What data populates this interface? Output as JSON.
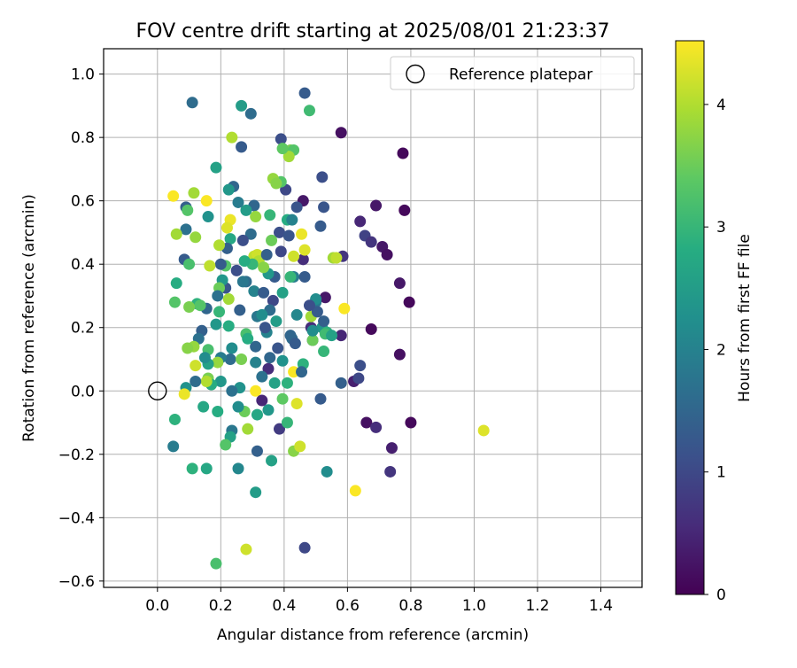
{
  "chart_data": {
    "type": "scatter",
    "title": "FOV centre drift starting at 2025/08/01 21:23:37",
    "xlabel": "Angular distance from reference (arcmin)",
    "ylabel": "Rotation from reference (arcmin)",
    "xlim": [
      -0.17,
      1.53
    ],
    "ylim": [
      -0.62,
      1.08
    ],
    "x_ticks": [
      0.0,
      0.2,
      0.4,
      0.6,
      0.8,
      1.0,
      1.2,
      1.4
    ],
    "x_tick_labels": [
      "0.0",
      "0.2",
      "0.4",
      "0.6",
      "0.8",
      "1.0",
      "1.2",
      "1.4"
    ],
    "y_ticks": [
      -0.6,
      -0.4,
      -0.2,
      0.0,
      0.2,
      0.4,
      0.6,
      0.8,
      1.0
    ],
    "y_tick_labels": [
      "−0.6",
      "−0.4",
      "−0.2",
      "0.0",
      "0.2",
      "0.4",
      "0.6",
      "0.8",
      "1.0"
    ],
    "grid": true,
    "colormap": "viridis",
    "colorbar": {
      "label": "Hours from first FF file",
      "range": [
        0,
        4.52
      ],
      "ticks": [
        0,
        1,
        2,
        3,
        4
      ],
      "tick_labels": [
        "0",
        "1",
        "2",
        "3",
        "4"
      ]
    },
    "legend": {
      "position": "top-right",
      "entries": [
        {
          "label": "Reference platepar",
          "marker": "open-circle"
        }
      ]
    },
    "reference_point": {
      "x": 0.0,
      "y": 0.0
    },
    "points": [
      {
        "x": 0.58,
        "y": 0.815,
        "h": 0.2
      },
      {
        "x": 0.775,
        "y": 0.75,
        "h": 0.1
      },
      {
        "x": 0.78,
        "y": 0.57,
        "h": 0.1
      },
      {
        "x": 0.69,
        "y": 0.585,
        "h": 0.3
      },
      {
        "x": 0.64,
        "y": 0.535,
        "h": 0.5
      },
      {
        "x": 0.655,
        "y": 0.49,
        "h": 0.9
      },
      {
        "x": 0.675,
        "y": 0.47,
        "h": 0.7
      },
      {
        "x": 0.71,
        "y": 0.455,
        "h": 0.3
      },
      {
        "x": 0.725,
        "y": 0.43,
        "h": 0.2
      },
      {
        "x": 0.765,
        "y": 0.34,
        "h": 0.3
      },
      {
        "x": 0.795,
        "y": 0.28,
        "h": 0.1
      },
      {
        "x": 0.675,
        "y": 0.195,
        "h": 0.1
      },
      {
        "x": 0.765,
        "y": 0.115,
        "h": 0.2
      },
      {
        "x": 0.8,
        "y": -0.1,
        "h": 0.1
      },
      {
        "x": 0.66,
        "y": -0.1,
        "h": 0.2
      },
      {
        "x": 0.69,
        "y": -0.115,
        "h": 0.6
      },
      {
        "x": 0.74,
        "y": -0.18,
        "h": 0.4
      },
      {
        "x": 0.735,
        "y": -0.255,
        "h": 0.7
      },
      {
        "x": 0.64,
        "y": 0.08,
        "h": 1.1
      },
      {
        "x": 0.62,
        "y": 0.03,
        "h": 0.4
      },
      {
        "x": 0.635,
        "y": 0.04,
        "h": 1.0
      },
      {
        "x": 0.58,
        "y": 0.025,
        "h": 1.4
      },
      {
        "x": 0.585,
        "y": 0.425,
        "h": 0.7
      },
      {
        "x": 0.58,
        "y": 0.175,
        "h": 0.5
      },
      {
        "x": 0.52,
        "y": 0.675,
        "h": 1.1
      },
      {
        "x": 0.525,
        "y": 0.58,
        "h": 1.2
      },
      {
        "x": 0.515,
        "y": 0.52,
        "h": 1.3
      },
      {
        "x": 0.53,
        "y": 0.295,
        "h": 0.3
      },
      {
        "x": 0.5,
        "y": 0.28,
        "h": 1.8
      },
      {
        "x": 0.485,
        "y": 0.2,
        "h": 0.6
      },
      {
        "x": 0.49,
        "y": 0.16,
        "h": 0.7
      },
      {
        "x": 0.515,
        "y": -0.025,
        "h": 1.3
      },
      {
        "x": 0.535,
        "y": -0.255,
        "h": 2.2
      },
      {
        "x": 0.465,
        "y": 0.94,
        "h": 1.3
      },
      {
        "x": 0.48,
        "y": 0.885,
        "h": 3.1
      },
      {
        "x": 0.465,
        "y": -0.495,
        "h": 1.0
      },
      {
        "x": 0.46,
        "y": 0.6,
        "h": 0.3
      },
      {
        "x": 0.455,
        "y": 0.495,
        "h": 4.4
      },
      {
        "x": 0.46,
        "y": 0.415,
        "h": 0.6
      },
      {
        "x": 0.465,
        "y": 0.445,
        "h": 4.3
      },
      {
        "x": 0.44,
        "y": 0.24,
        "h": 2.1
      },
      {
        "x": 0.42,
        "y": 0.76,
        "h": 3.6
      },
      {
        "x": 0.43,
        "y": 0.76,
        "h": 3.3
      },
      {
        "x": 0.415,
        "y": 0.74,
        "h": 3.9
      },
      {
        "x": 0.405,
        "y": 0.635,
        "h": 1.0
      },
      {
        "x": 0.41,
        "y": 0.54,
        "h": 2.8
      },
      {
        "x": 0.43,
        "y": 0.425,
        "h": 4.2
      },
      {
        "x": 0.425,
        "y": 0.165,
        "h": 1.6
      },
      {
        "x": 0.43,
        "y": 0.06,
        "h": 4.5
      },
      {
        "x": 0.44,
        "y": -0.04,
        "h": 4.3
      },
      {
        "x": 0.43,
        "y": -0.19,
        "h": 3.7
      },
      {
        "x": 0.45,
        "y": -0.175,
        "h": 4.2
      },
      {
        "x": 0.39,
        "y": 0.795,
        "h": 1.1
      },
      {
        "x": 0.395,
        "y": 0.765,
        "h": 3.4
      },
      {
        "x": 0.39,
        "y": 0.66,
        "h": 3.3
      },
      {
        "x": 0.385,
        "y": 0.5,
        "h": 1.1
      },
      {
        "x": 0.39,
        "y": 0.44,
        "h": 1.0
      },
      {
        "x": 0.395,
        "y": 0.31,
        "h": 2.6
      },
      {
        "x": 0.38,
        "y": 0.135,
        "h": 1.2
      },
      {
        "x": 0.395,
        "y": 0.095,
        "h": 2.3
      },
      {
        "x": 0.395,
        "y": -0.025,
        "h": 3.4
      },
      {
        "x": 0.385,
        "y": -0.12,
        "h": 0.8
      },
      {
        "x": 0.41,
        "y": -0.1,
        "h": 3.0
      },
      {
        "x": 0.365,
        "y": 0.67,
        "h": 3.8
      },
      {
        "x": 0.375,
        "y": 0.655,
        "h": 3.7
      },
      {
        "x": 0.355,
        "y": 0.555,
        "h": 3.0
      },
      {
        "x": 0.36,
        "y": 0.475,
        "h": 3.5
      },
      {
        "x": 0.37,
        "y": 0.36,
        "h": 1.3
      },
      {
        "x": 0.365,
        "y": 0.285,
        "h": 1.0
      },
      {
        "x": 0.35,
        "y": 0.37,
        "h": 2.4
      },
      {
        "x": 0.355,
        "y": 0.255,
        "h": 1.6
      },
      {
        "x": 0.345,
        "y": 0.185,
        "h": 2.0
      },
      {
        "x": 0.35,
        "y": 0.07,
        "h": 0.6
      },
      {
        "x": 0.35,
        "y": -0.06,
        "h": 2.4
      },
      {
        "x": 0.36,
        "y": -0.22,
        "h": 2.6
      },
      {
        "x": 0.295,
        "y": 0.875,
        "h": 1.6
      },
      {
        "x": 0.305,
        "y": 0.585,
        "h": 1.5
      },
      {
        "x": 0.31,
        "y": 0.55,
        "h": 3.8
      },
      {
        "x": 0.295,
        "y": 0.495,
        "h": 1.6
      },
      {
        "x": 0.305,
        "y": 0.425,
        "h": 4.1
      },
      {
        "x": 0.315,
        "y": 0.43,
        "h": 4.2
      },
      {
        "x": 0.32,
        "y": 0.41,
        "h": 4.0
      },
      {
        "x": 0.3,
        "y": 0.4,
        "h": 3.0
      },
      {
        "x": 0.305,
        "y": 0.315,
        "h": 2.0
      },
      {
        "x": 0.315,
        "y": 0.235,
        "h": 1.8
      },
      {
        "x": 0.31,
        "y": 0.14,
        "h": 1.5
      },
      {
        "x": 0.31,
        "y": 0.09,
        "h": 2.0
      },
      {
        "x": 0.315,
        "y": -0.075,
        "h": 2.7
      },
      {
        "x": 0.315,
        "y": -0.19,
        "h": 1.4
      },
      {
        "x": 0.31,
        "y": -0.32,
        "h": 2.5
      },
      {
        "x": 0.28,
        "y": 0.57,
        "h": 2.5
      },
      {
        "x": 0.27,
        "y": 0.475,
        "h": 1.1
      },
      {
        "x": 0.275,
        "y": 0.41,
        "h": 2.8
      },
      {
        "x": 0.28,
        "y": 0.345,
        "h": 1.6
      },
      {
        "x": 0.27,
        "y": 0.345,
        "h": 1.8
      },
      {
        "x": 0.28,
        "y": 0.18,
        "h": 3.2
      },
      {
        "x": 0.285,
        "y": 0.165,
        "h": 2.8
      },
      {
        "x": 0.275,
        "y": -0.065,
        "h": 3.5
      },
      {
        "x": 0.285,
        "y": -0.12,
        "h": 3.9
      },
      {
        "x": 0.28,
        "y": -0.5,
        "h": 4.2
      },
      {
        "x": 0.265,
        "y": 0.9,
        "h": 2.5
      },
      {
        "x": 0.265,
        "y": 0.77,
        "h": 1.3
      },
      {
        "x": 0.255,
        "y": 0.595,
        "h": 1.9
      },
      {
        "x": 0.25,
        "y": 0.38,
        "h": 1.1
      },
      {
        "x": 0.26,
        "y": 0.255,
        "h": 1.4
      },
      {
        "x": 0.26,
        "y": 0.01,
        "h": 2.3
      },
      {
        "x": 0.255,
        "y": -0.05,
        "h": 2.2
      },
      {
        "x": 0.255,
        "y": -0.245,
        "h": 2.1
      },
      {
        "x": 0.235,
        "y": 0.8,
        "h": 4.0
      },
      {
        "x": 0.24,
        "y": 0.645,
        "h": 1.5
      },
      {
        "x": 0.225,
        "y": 0.635,
        "h": 2.4
      },
      {
        "x": 0.23,
        "y": 0.54,
        "h": 4.4
      },
      {
        "x": 0.22,
        "y": 0.515,
        "h": 4.3
      },
      {
        "x": 0.23,
        "y": 0.48,
        "h": 2.7
      },
      {
        "x": 0.215,
        "y": 0.395,
        "h": 3.3
      },
      {
        "x": 0.22,
        "y": 0.45,
        "h": 1.4
      },
      {
        "x": 0.215,
        "y": 0.325,
        "h": 1.2
      },
      {
        "x": 0.225,
        "y": 0.29,
        "h": 3.9
      },
      {
        "x": 0.225,
        "y": 0.205,
        "h": 2.8
      },
      {
        "x": 0.235,
        "y": 0.135,
        "h": 2.2
      },
      {
        "x": 0.23,
        "y": 0.1,
        "h": 1.6
      },
      {
        "x": 0.235,
        "y": 0.0,
        "h": 1.7
      },
      {
        "x": 0.235,
        "y": -0.125,
        "h": 1.8
      },
      {
        "x": 0.23,
        "y": -0.145,
        "h": 2.6
      },
      {
        "x": 0.215,
        "y": -0.17,
        "h": 3.3
      },
      {
        "x": 0.185,
        "y": 0.705,
        "h": 2.6
      },
      {
        "x": 0.195,
        "y": 0.46,
        "h": 4.0
      },
      {
        "x": 0.2,
        "y": 0.4,
        "h": 1.3
      },
      {
        "x": 0.205,
        "y": 0.35,
        "h": 2.4
      },
      {
        "x": 0.195,
        "y": 0.325,
        "h": 3.5
      },
      {
        "x": 0.19,
        "y": 0.3,
        "h": 1.7
      },
      {
        "x": 0.195,
        "y": 0.25,
        "h": 3.0
      },
      {
        "x": 0.185,
        "y": 0.21,
        "h": 2.4
      },
      {
        "x": 0.2,
        "y": 0.105,
        "h": 1.9
      },
      {
        "x": 0.19,
        "y": 0.09,
        "h": 3.8
      },
      {
        "x": 0.2,
        "y": 0.03,
        "h": 2.4
      },
      {
        "x": 0.19,
        "y": -0.065,
        "h": 2.8
      },
      {
        "x": 0.185,
        "y": -0.545,
        "h": 3.2
      },
      {
        "x": 0.155,
        "y": 0.6,
        "h": 4.5
      },
      {
        "x": 0.16,
        "y": 0.55,
        "h": 2.3
      },
      {
        "x": 0.165,
        "y": 0.395,
        "h": 4.1
      },
      {
        "x": 0.155,
        "y": 0.26,
        "h": 1.5
      },
      {
        "x": 0.16,
        "y": 0.13,
        "h": 3.2
      },
      {
        "x": 0.16,
        "y": 0.085,
        "h": 2.6
      },
      {
        "x": 0.15,
        "y": 0.105,
        "h": 2.2
      },
      {
        "x": 0.16,
        "y": 0.04,
        "h": 3.6
      },
      {
        "x": 0.17,
        "y": 0.02,
        "h": 2.8
      },
      {
        "x": 0.155,
        "y": 0.03,
        "h": 4.0
      },
      {
        "x": 0.145,
        "y": -0.05,
        "h": 2.7
      },
      {
        "x": 0.155,
        "y": -0.245,
        "h": 2.7
      },
      {
        "x": 0.11,
        "y": 0.91,
        "h": 1.6
      },
      {
        "x": 0.115,
        "y": 0.625,
        "h": 3.9
      },
      {
        "x": 0.12,
        "y": 0.485,
        "h": 3.8
      },
      {
        "x": 0.125,
        "y": 0.275,
        "h": 2.9
      },
      {
        "x": 0.135,
        "y": 0.27,
        "h": 3.3
      },
      {
        "x": 0.14,
        "y": 0.19,
        "h": 1.4
      },
      {
        "x": 0.13,
        "y": 0.165,
        "h": 1.7
      },
      {
        "x": 0.115,
        "y": 0.14,
        "h": 3.8
      },
      {
        "x": 0.12,
        "y": 0.08,
        "h": 4.2
      },
      {
        "x": 0.12,
        "y": 0.03,
        "h": 1.6
      },
      {
        "x": 0.11,
        "y": -0.245,
        "h": 2.9
      },
      {
        "x": 0.09,
        "y": 0.58,
        "h": 1.4
      },
      {
        "x": 0.095,
        "y": 0.57,
        "h": 3.3
      },
      {
        "x": 0.09,
        "y": 0.51,
        "h": 1.7
      },
      {
        "x": 0.085,
        "y": 0.415,
        "h": 1.3
      },
      {
        "x": 0.1,
        "y": 0.4,
        "h": 3.2
      },
      {
        "x": 0.1,
        "y": 0.265,
        "h": 3.6
      },
      {
        "x": 0.095,
        "y": 0.135,
        "h": 3.7
      },
      {
        "x": 0.09,
        "y": 0.01,
        "h": 2.3
      },
      {
        "x": 0.085,
        "y": -0.01,
        "h": 4.4
      },
      {
        "x": 0.05,
        "y": 0.615,
        "h": 4.5
      },
      {
        "x": 0.06,
        "y": 0.495,
        "h": 3.9
      },
      {
        "x": 0.06,
        "y": 0.34,
        "h": 2.8
      },
      {
        "x": 0.055,
        "y": 0.28,
        "h": 3.3
      },
      {
        "x": 0.055,
        "y": -0.09,
        "h": 2.9
      },
      {
        "x": 0.05,
        "y": -0.175,
        "h": 1.9
      },
      {
        "x": 0.31,
        "y": 0.0,
        "h": 4.5
      },
      {
        "x": 0.335,
        "y": 0.39,
        "h": 3.7
      },
      {
        "x": 0.33,
        "y": 0.24,
        "h": 2.2
      },
      {
        "x": 0.375,
        "y": 0.22,
        "h": 2.5
      },
      {
        "x": 0.37,
        "y": 0.025,
        "h": 2.6
      },
      {
        "x": 0.41,
        "y": 0.025,
        "h": 2.9
      },
      {
        "x": 0.42,
        "y": 0.175,
        "h": 1.5
      },
      {
        "x": 0.425,
        "y": 0.54,
        "h": 2.0
      },
      {
        "x": 0.43,
        "y": 0.36,
        "h": 1.9
      },
      {
        "x": 0.42,
        "y": 0.36,
        "h": 3.0
      },
      {
        "x": 0.415,
        "y": 0.49,
        "h": 1.2
      },
      {
        "x": 0.44,
        "y": 0.58,
        "h": 1.2
      },
      {
        "x": 0.435,
        "y": 0.15,
        "h": 1.3
      },
      {
        "x": 0.46,
        "y": 0.085,
        "h": 2.9
      },
      {
        "x": 0.455,
        "y": 0.06,
        "h": 1.5
      },
      {
        "x": 0.465,
        "y": 0.36,
        "h": 1.3
      },
      {
        "x": 0.485,
        "y": 0.235,
        "h": 3.9
      },
      {
        "x": 0.49,
        "y": 0.16,
        "h": 3.5
      },
      {
        "x": 0.5,
        "y": 0.29,
        "h": 2.2
      },
      {
        "x": 0.505,
        "y": 0.25,
        "h": 1.3
      },
      {
        "x": 0.52,
        "y": 0.2,
        "h": 2.4
      },
      {
        "x": 0.525,
        "y": 0.125,
        "h": 3.0
      },
      {
        "x": 0.535,
        "y": 0.185,
        "h": 2.9
      },
      {
        "x": 0.525,
        "y": 0.22,
        "h": 1.4
      },
      {
        "x": 0.53,
        "y": 0.18,
        "h": 3.1
      },
      {
        "x": 0.55,
        "y": 0.175,
        "h": 2.6
      },
      {
        "x": 0.555,
        "y": 0.42,
        "h": 3.9
      },
      {
        "x": 0.565,
        "y": 0.42,
        "h": 4.1
      },
      {
        "x": 0.59,
        "y": 0.26,
        "h": 4.5
      },
      {
        "x": 0.625,
        "y": -0.315,
        "h": 4.5
      },
      {
        "x": 1.03,
        "y": -0.125,
        "h": 4.3
      },
      {
        "x": 0.48,
        "y": 0.27,
        "h": 1.1
      },
      {
        "x": 0.49,
        "y": 0.19,
        "h": 2.2
      },
      {
        "x": 0.355,
        "y": 0.105,
        "h": 1.5
      },
      {
        "x": 0.34,
        "y": 0.2,
        "h": 1.2
      },
      {
        "x": 0.335,
        "y": 0.31,
        "h": 1.3
      },
      {
        "x": 0.345,
        "y": 0.43,
        "h": 1.4
      },
      {
        "x": 0.33,
        "y": -0.03,
        "h": 0.5
      },
      {
        "x": 0.265,
        "y": 0.1,
        "h": 3.6
      },
      {
        "x": 0.33,
        "y": 0.045,
        "h": 1.7
      }
    ]
  }
}
